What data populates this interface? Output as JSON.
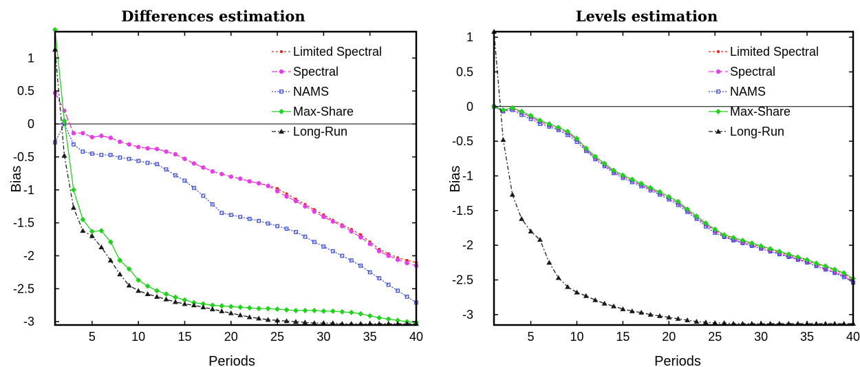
{
  "chart_data": [
    {
      "type": "line",
      "title": "Differences estimation",
      "xlabel": "Periods",
      "ylabel": "Bias",
      "xlim": [
        1,
        40
      ],
      "ylim": [
        -3.05,
        1.4
      ],
      "xticks": [
        5,
        10,
        15,
        20,
        25,
        30,
        35,
        40
      ],
      "yticks": [
        1,
        0.5,
        0,
        -0.5,
        -1,
        -1.5,
        -2,
        -2.5,
        -3
      ],
      "ytick_labels": [
        "1",
        "0.5",
        "0",
        "-0.5",
        "-1",
        "-1.5",
        "-2",
        "-2.5",
        "-3"
      ],
      "grid": false,
      "zero_line": true,
      "legend_position": "top-right",
      "x": [
        1,
        2,
        3,
        4,
        5,
        6,
        7,
        8,
        9,
        10,
        11,
        12,
        13,
        14,
        15,
        16,
        17,
        18,
        19,
        20,
        21,
        22,
        23,
        24,
        25,
        26,
        27,
        28,
        29,
        30,
        31,
        32,
        33,
        34,
        35,
        36,
        37,
        38,
        39,
        40
      ],
      "series": [
        {
          "name": "Limited Spectral",
          "color": "#e8231f",
          "dash": "3,3",
          "marker": "dot",
          "values": [
            0.48,
            0.2,
            -0.14,
            -0.14,
            -0.2,
            -0.18,
            -0.21,
            -0.27,
            -0.31,
            -0.35,
            -0.37,
            -0.38,
            -0.42,
            -0.46,
            -0.53,
            -0.6,
            -0.66,
            -0.72,
            -0.76,
            -0.8,
            -0.83,
            -0.87,
            -0.9,
            -0.93,
            -0.98,
            -1.06,
            -1.14,
            -1.22,
            -1.3,
            -1.38,
            -1.46,
            -1.53,
            -1.6,
            -1.68,
            -1.79,
            -1.9,
            -1.97,
            -2.03,
            -2.07,
            -2.1
          ]
        },
        {
          "name": "Spectral",
          "color": "#e43ee6",
          "dash": "8,4",
          "marker": "circle",
          "values": [
            0.47,
            0.2,
            -0.14,
            -0.14,
            -0.2,
            -0.18,
            -0.21,
            -0.27,
            -0.31,
            -0.35,
            -0.37,
            -0.38,
            -0.42,
            -0.46,
            -0.53,
            -0.6,
            -0.66,
            -0.72,
            -0.76,
            -0.8,
            -0.83,
            -0.87,
            -0.9,
            -0.94,
            -1.02,
            -1.1,
            -1.17,
            -1.25,
            -1.33,
            -1.41,
            -1.48,
            -1.55,
            -1.63,
            -1.72,
            -1.82,
            -1.93,
            -2.0,
            -2.06,
            -2.11,
            -2.15
          ]
        },
        {
          "name": "NAMS",
          "color": "#3a49d3",
          "dash": "2,2",
          "marker": "square",
          "values": [
            -0.28,
            0.0,
            -0.31,
            -0.42,
            -0.45,
            -0.47,
            -0.47,
            -0.51,
            -0.53,
            -0.56,
            -0.59,
            -0.61,
            -0.69,
            -0.78,
            -0.86,
            -0.97,
            -1.09,
            -1.22,
            -1.35,
            -1.38,
            -1.41,
            -1.44,
            -1.47,
            -1.51,
            -1.55,
            -1.59,
            -1.64,
            -1.71,
            -1.79,
            -1.86,
            -1.93,
            -2.0,
            -2.07,
            -2.15,
            -2.25,
            -2.34,
            -2.44,
            -2.53,
            -2.62,
            -2.71
          ]
        },
        {
          "name": "Max-Share",
          "color": "#22d21f",
          "dash": "",
          "marker": "diamond",
          "values": [
            1.43,
            0.05,
            -1.0,
            -1.45,
            -1.63,
            -1.62,
            -1.79,
            -2.07,
            -2.2,
            -2.37,
            -2.46,
            -2.53,
            -2.58,
            -2.63,
            -2.67,
            -2.71,
            -2.73,
            -2.75,
            -2.76,
            -2.77,
            -2.78,
            -2.79,
            -2.8,
            -2.8,
            -2.81,
            -2.82,
            -2.83,
            -2.83,
            -2.83,
            -2.84,
            -2.84,
            -2.85,
            -2.86,
            -2.88,
            -2.91,
            -2.94,
            -2.96,
            -2.98,
            -3.0,
            -3.01
          ]
        },
        {
          "name": "Long-Run",
          "color": "#1a1a1a",
          "dash": "6,3,2,3",
          "marker": "triangle",
          "values": [
            1.13,
            -0.48,
            -1.27,
            -1.62,
            -1.7,
            -1.87,
            -2.07,
            -2.28,
            -2.45,
            -2.53,
            -2.58,
            -2.62,
            -2.66,
            -2.7,
            -2.73,
            -2.75,
            -2.78,
            -2.81,
            -2.84,
            -2.87,
            -2.9,
            -2.93,
            -2.95,
            -2.97,
            -2.98,
            -2.99,
            -3.0,
            -3.01,
            -3.02,
            -3.02,
            -3.02,
            -3.03,
            -3.03,
            -3.03,
            -3.03,
            -3.03,
            -3.03,
            -3.03,
            -3.03,
            -3.03
          ]
        }
      ]
    },
    {
      "type": "line",
      "title": "Levels estimation",
      "xlabel": "Periods",
      "ylabel": "Bias",
      "xlim": [
        1,
        40
      ],
      "ylim": [
        -3.15,
        1.08
      ],
      "xticks": [
        5,
        10,
        15,
        20,
        25,
        30,
        35,
        40
      ],
      "yticks": [
        1,
        0.5,
        0,
        -0.5,
        -1,
        -1.5,
        -2,
        -2.5,
        -3
      ],
      "ytick_labels": [
        "1",
        "0.5",
        "0",
        "-0.5",
        "-1",
        "-1.5",
        "-2",
        "-2.5",
        "-3"
      ],
      "grid": false,
      "zero_line": true,
      "legend_position": "top-right",
      "x": [
        1,
        2,
        3,
        4,
        5,
        6,
        7,
        8,
        9,
        10,
        11,
        12,
        13,
        14,
        15,
        16,
        17,
        18,
        19,
        20,
        21,
        22,
        23,
        24,
        25,
        26,
        27,
        28,
        29,
        30,
        31,
        32,
        33,
        34,
        35,
        36,
        37,
        38,
        39,
        40
      ],
      "series": [
        {
          "name": "Limited Spectral",
          "color": "#e8231f",
          "dash": "3,3",
          "marker": "dot",
          "values": [
            0.0,
            -0.06,
            -0.03,
            -0.09,
            -0.15,
            -0.22,
            -0.27,
            -0.32,
            -0.38,
            -0.48,
            -0.62,
            -0.74,
            -0.84,
            -0.94,
            -1.01,
            -1.07,
            -1.13,
            -1.19,
            -1.25,
            -1.32,
            -1.39,
            -1.5,
            -1.6,
            -1.7,
            -1.78,
            -1.86,
            -1.9,
            -1.94,
            -1.98,
            -2.02,
            -2.06,
            -2.1,
            -2.14,
            -2.18,
            -2.22,
            -2.27,
            -2.31,
            -2.36,
            -2.41,
            -2.5
          ]
        },
        {
          "name": "Spectral",
          "color": "#e43ee6",
          "dash": "8,4",
          "marker": "circle",
          "values": [
            0.0,
            -0.06,
            -0.03,
            -0.09,
            -0.15,
            -0.22,
            -0.27,
            -0.32,
            -0.38,
            -0.48,
            -0.62,
            -0.74,
            -0.84,
            -0.94,
            -1.01,
            -1.07,
            -1.13,
            -1.19,
            -1.25,
            -1.32,
            -1.39,
            -1.5,
            -1.6,
            -1.7,
            -1.8,
            -1.88,
            -1.92,
            -1.96,
            -2.0,
            -2.04,
            -2.08,
            -2.12,
            -2.16,
            -2.2,
            -2.24,
            -2.29,
            -2.34,
            -2.39,
            -2.44,
            -2.53
          ]
        },
        {
          "name": "NAMS",
          "color": "#3a49d3",
          "dash": "2,2",
          "marker": "square",
          "values": [
            0.0,
            -0.07,
            -0.05,
            -0.12,
            -0.18,
            -0.25,
            -0.29,
            -0.34,
            -0.41,
            -0.51,
            -0.64,
            -0.76,
            -0.86,
            -0.96,
            -1.03,
            -1.09,
            -1.15,
            -1.21,
            -1.27,
            -1.34,
            -1.42,
            -1.52,
            -1.62,
            -1.73,
            -1.82,
            -1.88,
            -1.93,
            -1.97,
            -2.01,
            -2.05,
            -2.09,
            -2.13,
            -2.17,
            -2.21,
            -2.25,
            -2.3,
            -2.35,
            -2.4,
            -2.46,
            -2.54
          ]
        },
        {
          "name": "Max-Share",
          "color": "#22d21f",
          "dash": "",
          "marker": "diamond",
          "values": [
            0.0,
            -0.05,
            -0.02,
            -0.07,
            -0.13,
            -0.2,
            -0.25,
            -0.3,
            -0.36,
            -0.46,
            -0.6,
            -0.72,
            -0.82,
            -0.92,
            -0.99,
            -1.05,
            -1.11,
            -1.17,
            -1.23,
            -1.3,
            -1.37,
            -1.48,
            -1.58,
            -1.68,
            -1.77,
            -1.85,
            -1.89,
            -1.93,
            -1.97,
            -2.01,
            -2.05,
            -2.09,
            -2.13,
            -2.17,
            -2.21,
            -2.26,
            -2.3,
            -2.35,
            -2.4,
            -2.48
          ]
        },
        {
          "name": "Long-Run",
          "color": "#1a1a1a",
          "dash": "6,3,2,3",
          "marker": "triangle",
          "values": [
            1.08,
            -0.48,
            -1.27,
            -1.62,
            -1.8,
            -1.92,
            -2.25,
            -2.47,
            -2.6,
            -2.68,
            -2.73,
            -2.79,
            -2.84,
            -2.88,
            -2.92,
            -2.95,
            -2.97,
            -3.0,
            -3.02,
            -3.04,
            -3.06,
            -3.08,
            -3.1,
            -3.11,
            -3.12,
            -3.12,
            -3.13,
            -3.13,
            -3.13,
            -3.13,
            -3.13,
            -3.13,
            -3.13,
            -3.13,
            -3.13,
            -3.13,
            -3.13,
            -3.13,
            -3.13,
            -3.13
          ]
        }
      ]
    }
  ]
}
